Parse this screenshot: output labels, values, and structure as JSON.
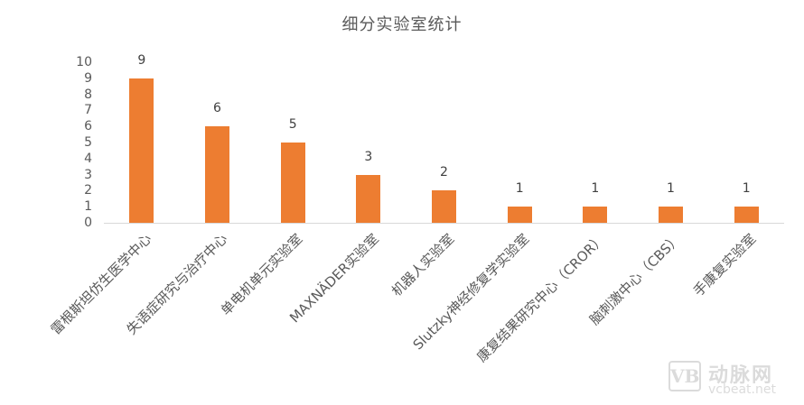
{
  "chart_data": {
    "type": "bar",
    "title": "细分实验室统计",
    "xlabel": "",
    "ylabel": "",
    "ylim": [
      0,
      10
    ],
    "yticks": [
      "0",
      "1",
      "2",
      "3",
      "4",
      "5",
      "6",
      "7",
      "8",
      "9",
      "10"
    ],
    "grid": false,
    "legend": "none",
    "bar_color": "#ed7d31",
    "categories": [
      "雷根斯坦仿生医学中心",
      "失语症研究与治疗中心",
      "单电机单元实验室",
      "MAXNÄDER实验室",
      "机器人实验室",
      "Slutzky神经修复学实验室",
      "康复结果研究中心（CROR）",
      "脑刺激中心（CBS）",
      "手康复实验室"
    ],
    "values": [
      9,
      6,
      5,
      3,
      2,
      1,
      1,
      1,
      1
    ],
    "data_labels": [
      "9",
      "6",
      "5",
      "3",
      "2",
      "1",
      "1",
      "1",
      "1"
    ]
  },
  "watermark": {
    "logo": "VB",
    "name": "动脉网",
    "site": "vcbeat.net"
  }
}
